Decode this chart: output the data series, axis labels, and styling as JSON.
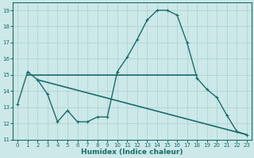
{
  "title": "",
  "xlabel": "Humidex (Indice chaleur)",
  "xlim": [
    -0.5,
    23.5
  ],
  "ylim": [
    11,
    19.5
  ],
  "xticks": [
    0,
    1,
    2,
    3,
    4,
    5,
    6,
    7,
    8,
    9,
    10,
    11,
    12,
    13,
    14,
    15,
    16,
    17,
    18,
    19,
    20,
    21,
    22,
    23
  ],
  "yticks": [
    11,
    12,
    13,
    14,
    15,
    16,
    17,
    18,
    19
  ],
  "bg_color": "#cce8e8",
  "line_color": "#1a6b6b",
  "grid_color": "#aacfcf",
  "line1_x": [
    0,
    1,
    2,
    3,
    4,
    5,
    6,
    7,
    8,
    9,
    10,
    11,
    12,
    13,
    14,
    15,
    16,
    17,
    18,
    19,
    20,
    21,
    22,
    23
  ],
  "line1_y": [
    13.2,
    15.2,
    14.7,
    13.8,
    12.1,
    12.8,
    12.1,
    12.1,
    12.4,
    12.4,
    15.2,
    16.1,
    17.2,
    18.4,
    19.0,
    19.0,
    18.7,
    17.0,
    14.8,
    14.1,
    13.6,
    12.5,
    11.5,
    11.3
  ],
  "line2_x": [
    1,
    2,
    10,
    11,
    12,
    13,
    14,
    15,
    16,
    17,
    18
  ],
  "line2_y": [
    15.0,
    15.0,
    15.0,
    15.0,
    15.0,
    15.0,
    15.0,
    15.0,
    15.0,
    15.0,
    15.0
  ],
  "line3_x": [
    2,
    23
  ],
  "line3_y": [
    14.7,
    11.3
  ]
}
